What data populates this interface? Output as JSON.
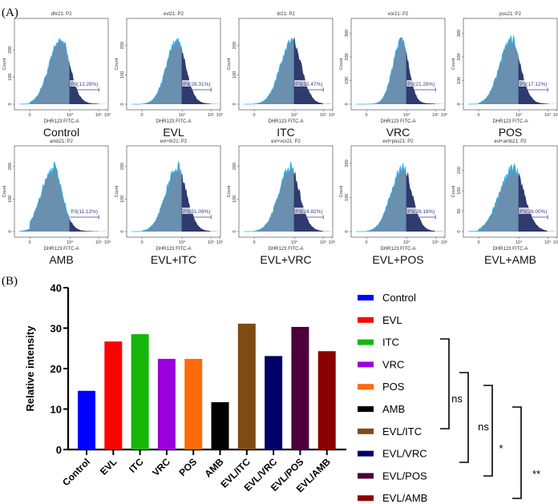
{
  "panel_a": {
    "label": "(A)",
    "x_axis_label": "DHR123 FITC-A",
    "y_axis_label": "Count",
    "x_ticks": [
      "0",
      "10⁴",
      "10⁵",
      "10⁶"
    ],
    "gate_name": "P3",
    "histograms": [
      {
        "title": "dhr21: P2",
        "group": "Control",
        "gate_pct": "P3(13.28%)",
        "y_ticks": [
          "0",
          "100",
          "200"
        ],
        "ymax": 270
      },
      {
        "title": "evl21: P2",
        "group": "EVL",
        "gate_pct": "P3(28.31%)",
        "y_ticks": [
          "0",
          "100",
          "200"
        ],
        "ymax": 250
      },
      {
        "title": "itr21: P2",
        "group": "ITC",
        "gate_pct": "P3(32.47%)",
        "y_ticks": [
          "0",
          "100",
          "200"
        ],
        "ymax": 250
      },
      {
        "title": "vor21: P2",
        "group": "VRC",
        "gate_pct": "P3(21.28%)",
        "y_ticks": [
          "0",
          "100",
          "200",
          "300"
        ],
        "ymax": 310
      },
      {
        "title": "pos21: P2",
        "group": "POS",
        "gate_pct": "P3(17.12%)",
        "y_ticks": [
          "0",
          "100",
          "200",
          "300"
        ],
        "ymax": 310
      },
      {
        "title": "amb21: P2",
        "group": "AMB",
        "gate_pct": "P3(11.12%)",
        "y_ticks": [
          "0",
          "100",
          "200"
        ],
        "ymax": 225
      },
      {
        "title": "evl+itr21: P2",
        "group": "EVL+ITC",
        "gate_pct": "P3(31.09%)",
        "y_ticks": [
          "0",
          "100",
          "200"
        ],
        "ymax": 225
      },
      {
        "title": "evl+vor21: P2",
        "group": "EVL+VRC",
        "gate_pct": "P3(24.82%)",
        "y_ticks": [
          "0",
          "100",
          "200"
        ],
        "ymax": 225
      },
      {
        "title": "evl+pos21: P2",
        "group": "EVL+POS",
        "gate_pct": "P3(28.18%)",
        "y_ticks": [
          "0",
          "100",
          "200"
        ],
        "ymax": 215
      },
      {
        "title": "evl+amb21: P2",
        "group": "EVL+AMB",
        "gate_pct": "P3(26.00%)",
        "y_ticks": [
          "0",
          "50",
          "100",
          "150"
        ],
        "ymax": 180
      }
    ]
  },
  "chart_data": {
    "type": "bar",
    "panel_label": "(B)",
    "title": "",
    "xlabel": "",
    "ylabel": "Relative intensity",
    "ylim": [
      0,
      40
    ],
    "y_ticks": [
      "0",
      "10",
      "20",
      "30",
      "40"
    ],
    "categories": [
      "Control",
      "EVL",
      "ITC",
      "VRC",
      "POS",
      "AMB",
      "EVL/ITC",
      "EVL/VRC",
      "EVL/POS",
      "EVL/AMB"
    ],
    "values": [
      14.5,
      26.7,
      28.5,
      22.4,
      22.4,
      11.7,
      31.1,
      23.1,
      30.3,
      24.3
    ],
    "colors": [
      "#0000ff",
      "#ff0000",
      "#16b60a",
      "#9900dd",
      "#ff6a0a",
      "#000000",
      "#7e4b15",
      "#000066",
      "#4b003c",
      "#8b0000"
    ],
    "legend": {
      "placement": "right",
      "entries": [
        "Control",
        "EVL",
        "ITC",
        "VRC",
        "POS",
        "AMB",
        "EVL/ITC",
        "EVL/VRC",
        "EVL/POS",
        "EVL/AMB"
      ]
    },
    "significance": [
      {
        "from": "ITC",
        "to": "EVL/ITC",
        "label": "ns"
      },
      {
        "from": "POS",
        "to": "EVL/VRC",
        "label": "ns"
      },
      {
        "from": "AMB",
        "to": "EVL/POS",
        "label": "*"
      },
      {
        "from": "EVL/ITC",
        "to": "EVL/AMB",
        "label": "**"
      }
    ]
  }
}
